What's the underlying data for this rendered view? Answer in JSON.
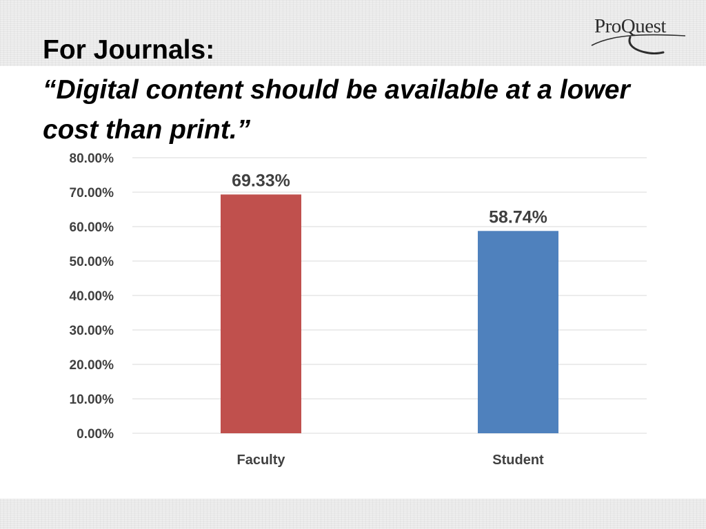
{
  "slide": {
    "title_line1": "For Journals:",
    "title_line2": "“Digital content should be available at a lower cost than print.”",
    "logo_text": "ProQuest",
    "logo_registered": "."
  },
  "colors": {
    "faculty_bar": "#c0504d",
    "student_bar": "#4f81bd",
    "gridline": "#d9d9d9",
    "text": "#404040"
  },
  "chart_data": {
    "type": "bar",
    "categories": [
      "Faculty",
      "Student"
    ],
    "values": [
      69.33,
      58.74
    ],
    "data_labels": [
      "69.33%",
      "58.74%"
    ],
    "bar_colors": [
      "#c0504d",
      "#4f81bd"
    ],
    "ylim": [
      0,
      80
    ],
    "y_ticks": [
      0,
      10,
      20,
      30,
      40,
      50,
      60,
      70,
      80
    ],
    "y_tick_labels": [
      "0.00%",
      "10.00%",
      "20.00%",
      "30.00%",
      "40.00%",
      "50.00%",
      "60.00%",
      "70.00%",
      "80.00%"
    ],
    "grid": true,
    "legend": "none"
  }
}
